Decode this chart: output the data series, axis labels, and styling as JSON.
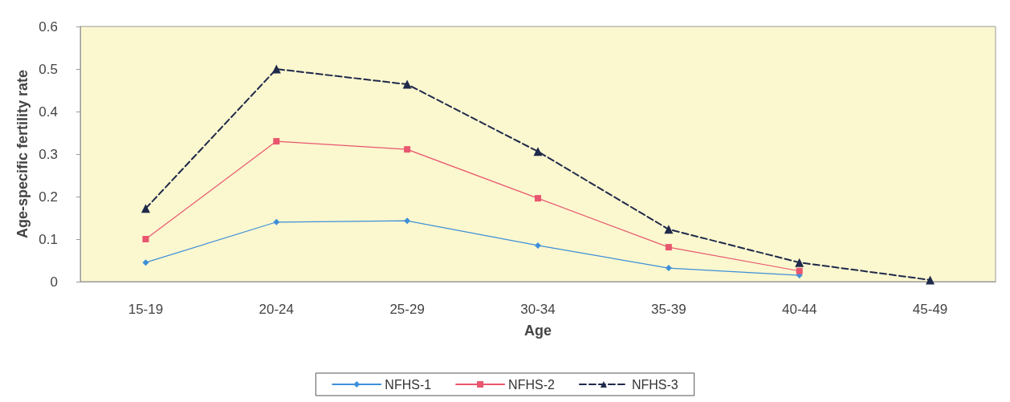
{
  "chart_data": {
    "type": "line",
    "xlabel": "Age",
    "ylabel": "Age-specific fertility rate",
    "categories": [
      "15-19",
      "20-24",
      "25-29",
      "30-34",
      "35-39",
      "40-44",
      "45-49"
    ],
    "series": [
      {
        "name": "NFHS-1",
        "color": "#3e8fd9",
        "marker": "diamond",
        "line_style": "solid",
        "values": [
          0.045,
          0.14,
          0.143,
          0.085,
          0.032,
          0.015,
          null
        ]
      },
      {
        "name": "NFHS-2",
        "color": "#e8566f",
        "marker": "square",
        "line_style": "solid",
        "values": [
          0.1,
          0.33,
          0.311,
          0.196,
          0.081,
          0.025,
          null
        ]
      },
      {
        "name": "NFHS-3",
        "color": "#1f2a4a",
        "marker": "triangle",
        "line_style": "dashed",
        "values": [
          0.172,
          0.5,
          0.464,
          0.306,
          0.123,
          0.045,
          0.004
        ]
      }
    ],
    "ylim": [
      0,
      0.6
    ],
    "yticks": [
      0,
      0.1,
      0.2,
      0.3,
      0.4,
      0.5,
      0.6
    ],
    "grid": false,
    "legend": "bottom"
  }
}
